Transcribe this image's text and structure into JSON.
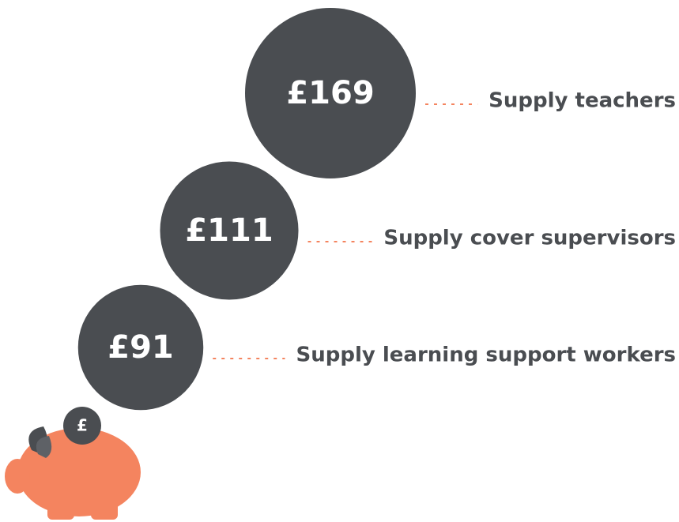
{
  "chart_data": {
    "type": "bubble",
    "categories": [
      "Supply teachers",
      "Supply cover supervisors",
      "Supply learning support workers"
    ],
    "values": [
      169,
      111,
      91
    ],
    "value_labels": [
      "£169",
      "£111",
      "£91"
    ],
    "color": "#4a4d51",
    "connector_color": "#f4845f"
  },
  "icon": {
    "coin_label": "£"
  }
}
